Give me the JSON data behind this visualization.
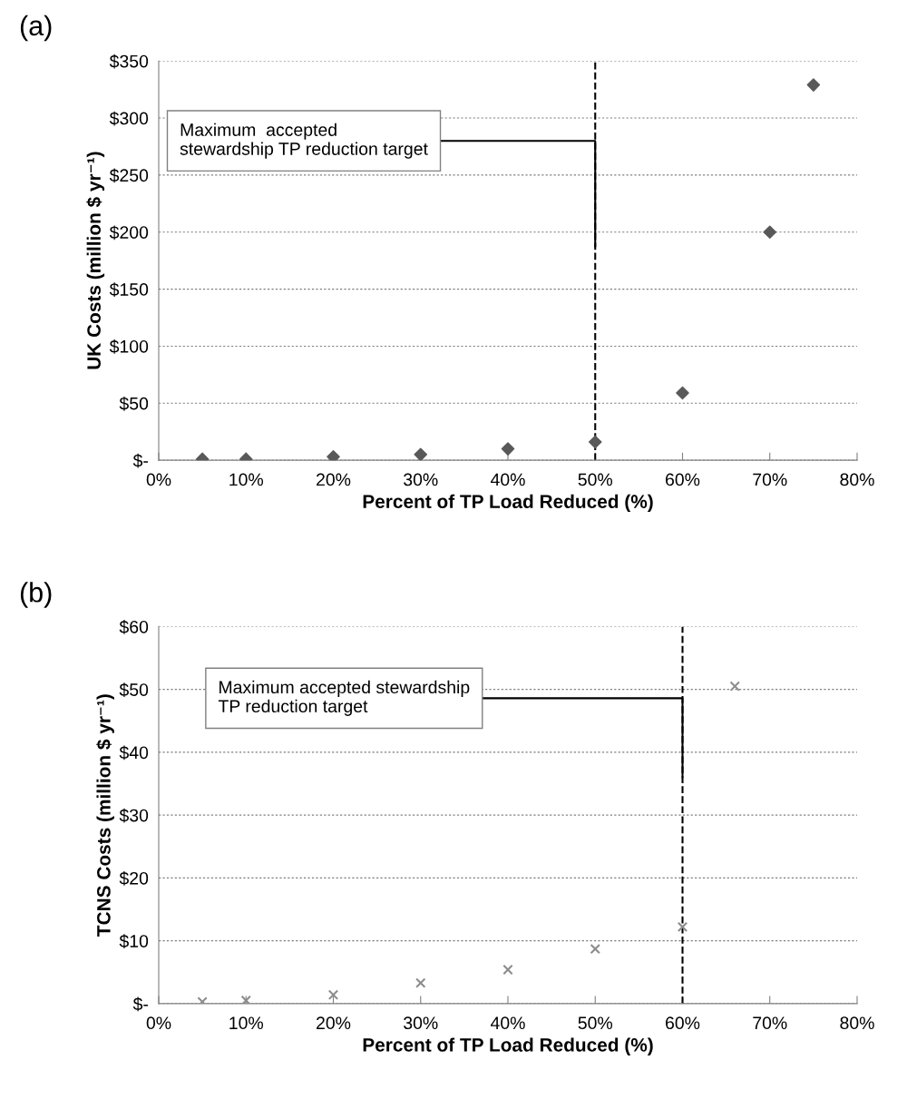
{
  "chart_data": [
    {
      "type": "scatter",
      "xlabel": "Percent of TP Load Reduced (%)",
      "ylabel": "UK Costs (million $ yr⁻¹)",
      "series": [
        {
          "color": "#595959",
          "marker": "diamond",
          "x": [
            5,
            10,
            20,
            30,
            40,
            50,
            60,
            70,
            75
          ],
          "values": [
            1,
            1,
            3,
            5,
            10,
            16,
            59,
            200,
            329
          ]
        }
      ],
      "xlim": [
        0,
        80
      ],
      "xticks": [
        {
          "value": 0,
          "label": "0%"
        },
        {
          "value": 10,
          "label": "10%"
        },
        {
          "value": 20,
          "label": "20%"
        },
        {
          "value": 30,
          "label": "30%"
        },
        {
          "value": 40,
          "label": "40%"
        },
        {
          "value": 50,
          "label": "50%"
        },
        {
          "value": 60,
          "label": "60%"
        },
        {
          "value": 70,
          "label": "70%"
        },
        {
          "value": 80,
          "label": "80%"
        }
      ],
      "ylim": [
        0,
        350
      ],
      "yticks": [
        {
          "value": 0,
          "label": "$-"
        },
        {
          "value": 50,
          "label": "$50"
        },
        {
          "value": 100,
          "label": "$100"
        },
        {
          "value": 150,
          "label": "$150"
        },
        {
          "value": 200,
          "label": "$200"
        },
        {
          "value": 250,
          "label": "$250"
        },
        {
          "value": 300,
          "label": "$300"
        },
        {
          "value": 350,
          "label": "$350"
        }
      ],
      "grid": "y",
      "legend": false,
      "ref_lines": [
        {
          "axis": "x",
          "value": 50,
          "color": "#000000",
          "line_style": "dashed"
        }
      ],
      "annotations": [
        "(a)",
        {
          "text": "Maximum  accepted\nstewardship TP reduction target",
          "x": 50,
          "y": 187
        }
      ]
    },
    {
      "type": "scatter",
      "xlabel": "Percent of TP Load Reduced (%)",
      "ylabel": "TCNS Costs (million $ yr⁻¹)",
      "series": [
        {
          "color": "#8c8c8c",
          "marker": "cross",
          "x": [
            5,
            10,
            20,
            30,
            40,
            50,
            60,
            66
          ],
          "values": [
            0.3,
            0.5,
            1.4,
            3.3,
            5.4,
            8.7,
            12.2,
            50.5
          ]
        }
      ],
      "xlim": [
        0,
        80
      ],
      "xticks": [
        {
          "value": 0,
          "label": "0%"
        },
        {
          "value": 10,
          "label": "10%"
        },
        {
          "value": 20,
          "label": "20%"
        },
        {
          "value": 30,
          "label": "30%"
        },
        {
          "value": 40,
          "label": "40%"
        },
        {
          "value": 50,
          "label": "50%"
        },
        {
          "value": 60,
          "label": "60%"
        },
        {
          "value": 70,
          "label": "70%"
        },
        {
          "value": 80,
          "label": "80%"
        }
      ],
      "ylim": [
        0,
        60
      ],
      "yticks": [
        {
          "value": 0,
          "label": "$-"
        },
        {
          "value": 10,
          "label": "$10"
        },
        {
          "value": 20,
          "label": "$20"
        },
        {
          "value": 30,
          "label": "$30"
        },
        {
          "value": 40,
          "label": "$40"
        },
        {
          "value": 50,
          "label": "$50"
        },
        {
          "value": 60,
          "label": "$60"
        }
      ],
      "grid": "y",
      "legend": false,
      "ref_lines": [
        {
          "axis": "x",
          "value": 60,
          "color": "#000000",
          "line_style": "dashed"
        }
      ],
      "annotations": [
        "(b)",
        {
          "text": "Maximum accepted stewardship\nTP reduction target",
          "x": 60,
          "y": 36
        }
      ]
    }
  ]
}
